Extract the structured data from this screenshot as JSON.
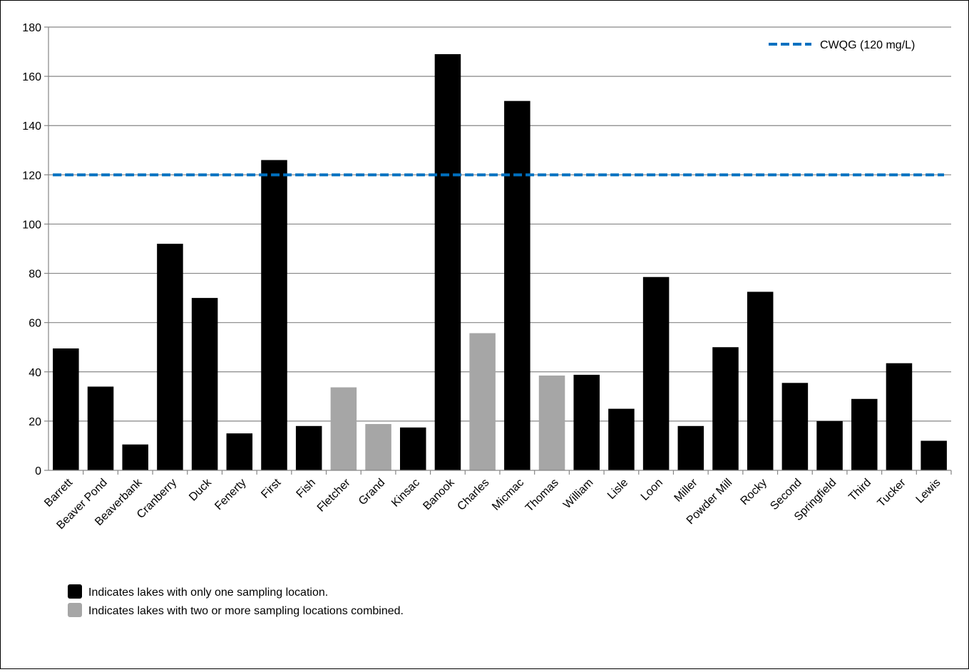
{
  "chart_data": {
    "type": "bar",
    "title": "",
    "xlabel": "",
    "ylabel": "",
    "ylim": [
      0,
      180
    ],
    "yticks": [
      0,
      20,
      40,
      60,
      80,
      100,
      120,
      140,
      160,
      180
    ],
    "grid": true,
    "categories": [
      "Barrett",
      "Beaver Pond",
      "Beaverbank",
      "Cranberry",
      "Duck",
      "Fenerty",
      "First",
      "Fish",
      "Fletcher",
      "Grand",
      "Kinsac",
      "Banook",
      "Charles",
      "Micmac",
      "Thomas",
      "William",
      "Lisle",
      "Loon",
      "Miller",
      "Powder Mill",
      "Rocky",
      "Second",
      "Springfield",
      "Third",
      "Tucker",
      "Lewis"
    ],
    "values": [
      49.5,
      34,
      10.5,
      92,
      70,
      15,
      126,
      18,
      33.7,
      18.8,
      17.4,
      169,
      55.7,
      150,
      38.5,
      38.8,
      25,
      78.5,
      18,
      50,
      72.5,
      35.5,
      20,
      29,
      43.5,
      12
    ],
    "combined_flags": [
      false,
      false,
      false,
      false,
      false,
      false,
      false,
      false,
      true,
      true,
      false,
      false,
      true,
      false,
      true,
      false,
      false,
      false,
      false,
      false,
      false,
      false,
      false,
      false,
      false,
      false
    ],
    "colors": {
      "single": "#000000",
      "combined": "#a6a6a6",
      "guideline": "#0070c0",
      "grid": "#868686"
    },
    "guideline": {
      "value": 120,
      "label": "CWQG (120 mg/L)"
    },
    "legend": [
      {
        "label": "Indicates lakes with only one sampling location.",
        "color": "#000000"
      },
      {
        "label": "Indicates lakes with two or more sampling locations combined.",
        "color": "#a6a6a6"
      }
    ]
  }
}
